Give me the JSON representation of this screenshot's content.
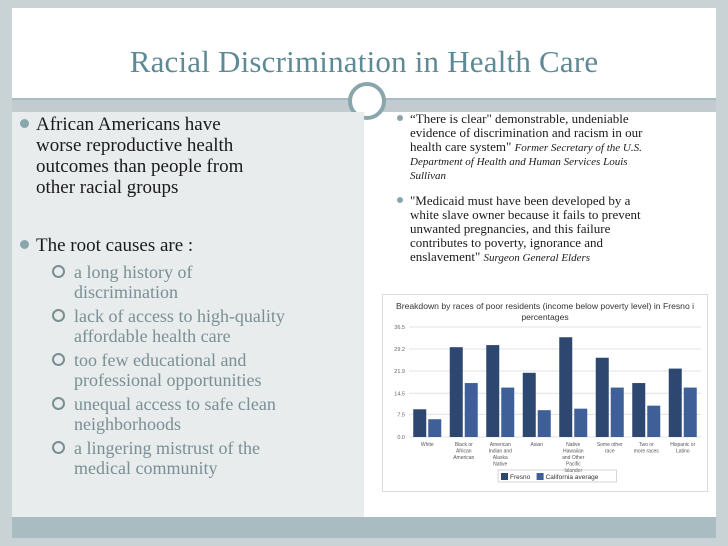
{
  "title": "Racial Discrimination in Health Care",
  "left": {
    "bullet1": [
      "African Americans  have",
      "worse  reproductive health",
      "outcomes than people from",
      "other racial groups"
    ],
    "bullet2": "The root causes are :",
    "subitems": [
      [
        "a long history of",
        "discrimination"
      ],
      [
        "lack of access to high-quality",
        "affordable health care"
      ],
      [
        "too few educational and",
        "professional opportunities"
      ],
      [
        "unequal access to safe clean",
        "neighborhoods"
      ],
      [
        "a lingering mistrust of the",
        "medical community"
      ]
    ]
  },
  "right": {
    "quote1_lines": [
      "“There is clear\" demonstrable, undeniable",
      "evidence of discrimination and racism in our",
      "health care system\""
    ],
    "quote1_attr": [
      "Former Secretary of the U.S.",
      "Department of Health and Human Services Louis",
      "Sullivan"
    ],
    "quote2_lines": [
      "\"Medicaid must have been developed by a",
      "white slave owner because it fails to prevent",
      "unwanted pregnancies, and this failure",
      "contributes to poverty, ignorance and",
      "enslavement\""
    ],
    "quote2_attr": "Surgeon General Elders"
  },
  "chart_data": {
    "type": "bar",
    "title": "Breakdown by races of poor residents (income below poverty level) in Fresno I percentages",
    "title_lines": [
      "Breakdown by races of poor residents (income below poverty level) in Fresno i",
      "percentages"
    ],
    "categories": [
      [
        "White"
      ],
      [
        "Black or",
        "African",
        "American"
      ],
      [
        "American",
        "Indian and",
        "Alaska",
        "Native"
      ],
      [
        "Asian"
      ],
      [
        "Native",
        "Hawaiian",
        "and Other",
        "Pacific",
        "Islander"
      ],
      [
        "Some other",
        "race"
      ],
      [
        "Two or",
        "more races"
      ],
      [
        "Hispanic or",
        "Latino"
      ]
    ],
    "series": [
      {
        "name": "Fresno",
        "color": "#2e4770",
        "values": [
          9.2,
          29.8,
          30.5,
          21.3,
          33.1,
          26.3,
          17.9,
          22.7
        ]
      },
      {
        "name": "California average",
        "color": "#3f5f99",
        "values": [
          5.9,
          17.9,
          16.4,
          8.9,
          9.4,
          16.4,
          10.4,
          16.4
        ]
      }
    ],
    "yticks": [
      "0.0",
      "7.5",
      "14.5",
      "21.9",
      "29.2",
      "36.5"
    ],
    "ylim": [
      0,
      36.5
    ],
    "grid": true,
    "legend": "bottom"
  }
}
